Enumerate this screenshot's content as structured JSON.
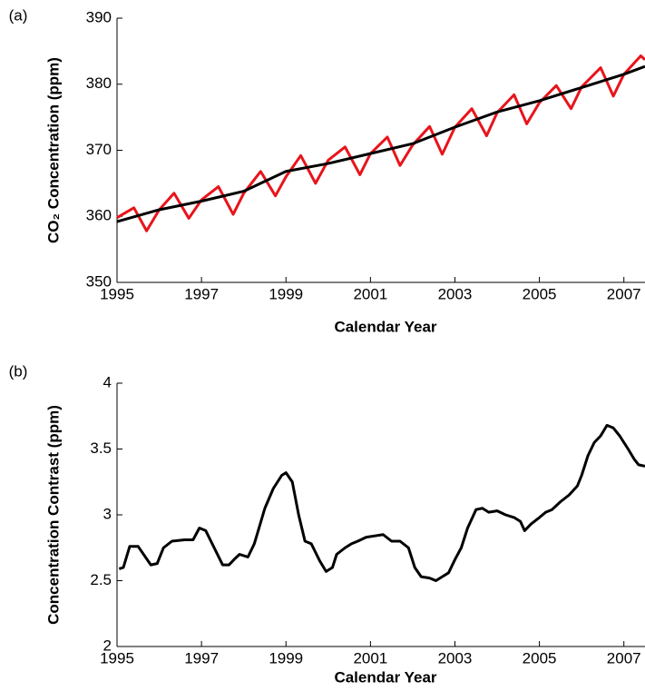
{
  "chart_data": [
    {
      "type": "line",
      "panel_label": "(a)",
      "xlabel": "Calendar Year",
      "ylabel": "CO₂ Concentration (ppm)",
      "xlim": [
        1995,
        2007.5
      ],
      "xticks": [
        1995,
        1997,
        1999,
        2001,
        2003,
        2005,
        2007
      ],
      "ylim": [
        350,
        390
      ],
      "yticks": [
        350,
        360,
        370,
        380,
        390
      ],
      "series": [
        {
          "color": "#e8141b",
          "x": [
            1995.0,
            1995.4,
            1995.7,
            1996.0,
            1996.35,
            1996.7,
            1997.0,
            1997.4,
            1997.75,
            1998.0,
            1998.4,
            1998.75,
            1999.0,
            1999.35,
            1999.7,
            2000.0,
            2000.4,
            2000.75,
            2001.0,
            2001.4,
            2001.7,
            2002.0,
            2002.4,
            2002.7,
            2003.0,
            2003.4,
            2003.75,
            2004.0,
            2004.4,
            2004.7,
            2005.0,
            2005.4,
            2005.75,
            2006.0,
            2006.45,
            2006.75,
            2007.0,
            2007.4,
            2007.5
          ],
          "values": [
            359.8,
            361.3,
            357.8,
            361,
            363.5,
            359.7,
            362.5,
            364.5,
            360.3,
            363.5,
            366.8,
            363.1,
            366,
            369.2,
            365,
            368.5,
            370.5,
            366.3,
            369.5,
            372,
            367.7,
            370.8,
            373.6,
            369.4,
            373.5,
            376.3,
            372.2,
            375.7,
            378.4,
            374,
            377.2,
            379.8,
            376.3,
            379.6,
            382.5,
            378.2,
            381.5,
            384.3,
            383.7
          ]
        },
        {
          "color": "#000000",
          "x": [
            1995.0,
            1996.0,
            1997.0,
            1998.0,
            1999.0,
            2000.0,
            2001.0,
            2002.0,
            2003.0,
            2004.0,
            2005.0,
            2006.0,
            2007.0,
            2007.5
          ],
          "values": [
            359.2,
            361,
            362.3,
            363.8,
            366.8,
            368,
            369.5,
            371,
            373.5,
            375.8,
            377.5,
            379.5,
            381.5,
            382.7
          ]
        }
      ]
    },
    {
      "type": "line",
      "panel_label": "(b)",
      "xlabel": "Calendar Year",
      "ylabel": "Concentration Contrast (ppm)",
      "xlim": [
        1995,
        2007.5
      ],
      "xticks": [
        1995,
        1997,
        1999,
        2001,
        2003,
        2005,
        2007
      ],
      "ylim": [
        2,
        4
      ],
      "yticks": [
        2,
        2.5,
        3,
        3.5,
        4
      ],
      "series": [
        {
          "color": "#000000",
          "x": [
            1995.05,
            1995.15,
            1995.3,
            1995.5,
            1995.8,
            1995.95,
            1996.1,
            1996.3,
            1996.6,
            1996.8,
            1996.95,
            1997.1,
            1997.3,
            1997.5,
            1997.65,
            1997.8,
            1997.9,
            1998.1,
            1998.25,
            1998.5,
            1998.7,
            1998.9,
            1999.0,
            1999.15,
            1999.3,
            1999.45,
            1999.6,
            1999.8,
            1999.95,
            2000.1,
            2000.2,
            2000.4,
            2000.55,
            2000.7,
            2000.9,
            2001.1,
            2001.3,
            2001.5,
            2001.7,
            2001.9,
            2002.05,
            2002.2,
            2002.4,
            2002.55,
            2002.7,
            2002.85,
            2003.0,
            2003.15,
            2003.3,
            2003.5,
            2003.65,
            2003.8,
            2004.0,
            2004.2,
            2004.4,
            2004.55,
            2004.65,
            2004.8,
            2005.0,
            2005.15,
            2005.3,
            2005.5,
            2005.7,
            2005.9,
            2006.0,
            2006.15,
            2006.3,
            2006.45,
            2006.6,
            2006.75,
            2006.9,
            2007.1,
            2007.25,
            2007.35,
            2007.5
          ],
          "values": [
            2.59,
            2.6,
            2.76,
            2.76,
            2.62,
            2.63,
            2.75,
            2.8,
            2.81,
            2.81,
            2.9,
            2.88,
            2.75,
            2.62,
            2.62,
            2.67,
            2.7,
            2.68,
            2.78,
            3.05,
            3.2,
            3.3,
            3.32,
            3.25,
            3.0,
            2.8,
            2.78,
            2.65,
            2.57,
            2.6,
            2.7,
            2.75,
            2.78,
            2.8,
            2.83,
            2.84,
            2.85,
            2.8,
            2.8,
            2.75,
            2.6,
            2.53,
            2.52,
            2.5,
            2.53,
            2.56,
            2.66,
            2.75,
            2.9,
            3.04,
            3.05,
            3.02,
            3.03,
            3.0,
            2.98,
            2.95,
            2.88,
            2.93,
            2.98,
            3.02,
            3.04,
            3.1,
            3.15,
            3.22,
            3.3,
            3.45,
            3.55,
            3.6,
            3.68,
            3.66,
            3.6,
            3.5,
            3.42,
            3.38,
            3.37
          ]
        }
      ]
    }
  ]
}
